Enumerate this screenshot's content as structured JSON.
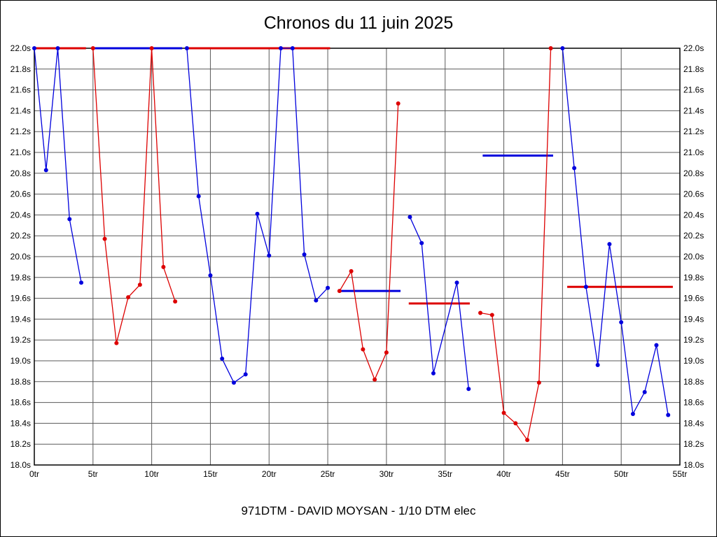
{
  "chart_data": {
    "type": "line",
    "title": "Chronos du 11 juin 2025",
    "caption": "971DTM - DAVID MOYSAN - 1/10 DTM elec",
    "x_unit": "tr",
    "y_unit": "s",
    "xlim": [
      0,
      55
    ],
    "ylim": [
      18.0,
      22.0
    ],
    "grid": true,
    "grid_color": "#5a5a5a",
    "legend": "none",
    "colors": {
      "blue": "#0000dd",
      "red": "#dd0000"
    },
    "xticks": [
      [
        0,
        "0tr"
      ],
      [
        5,
        "5tr"
      ],
      [
        10,
        "10tr"
      ],
      [
        15,
        "15tr"
      ],
      [
        20,
        "20tr"
      ],
      [
        25,
        "25tr"
      ],
      [
        30,
        "30tr"
      ],
      [
        35,
        "35tr"
      ],
      [
        40,
        "40tr"
      ],
      [
        45,
        "45tr"
      ],
      [
        50,
        "50tr"
      ],
      [
        55,
        "55tr"
      ]
    ],
    "yticks": [
      [
        22.0,
        "22.0s"
      ],
      [
        21.8,
        "21.8s"
      ],
      [
        21.6,
        "21.6s"
      ],
      [
        21.4,
        "21.4s"
      ],
      [
        21.2,
        "21.2s"
      ],
      [
        21.0,
        "21.0s"
      ],
      [
        20.8,
        "20.8s"
      ],
      [
        20.6,
        "20.6s"
      ],
      [
        20.4,
        "20.4s"
      ],
      [
        20.2,
        "20.2s"
      ],
      [
        20.0,
        "20.0s"
      ],
      [
        19.8,
        "19.8s"
      ],
      [
        19.6,
        "19.6s"
      ],
      [
        19.4,
        "19.4s"
      ],
      [
        19.2,
        "19.2s"
      ],
      [
        19.0,
        "19.0s"
      ],
      [
        18.8,
        "18.8s"
      ],
      [
        18.6,
        "18.6s"
      ],
      [
        18.4,
        "18.4s"
      ],
      [
        18.2,
        "18.2s"
      ],
      [
        18.0,
        "18.0s"
      ]
    ],
    "series": [
      {
        "name": "run-blue",
        "color_key": "blue",
        "segments": [
          [
            [
              0,
              22.0
            ],
            [
              1,
              20.83
            ],
            [
              2,
              22.0
            ],
            [
              3,
              20.36
            ],
            [
              4,
              19.75
            ]
          ],
          [
            [
              13,
              22.0
            ],
            [
              14,
              20.58
            ],
            [
              15,
              19.82
            ],
            [
              16,
              19.02
            ],
            [
              17,
              18.79
            ],
            [
              18,
              18.87
            ],
            [
              19,
              20.41
            ],
            [
              20,
              20.01
            ],
            [
              21,
              22.0
            ],
            [
              22,
              22.0
            ],
            [
              23,
              20.02
            ],
            [
              24,
              19.58
            ],
            [
              25,
              19.7
            ]
          ],
          [
            [
              32,
              20.38
            ],
            [
              33,
              20.13
            ],
            [
              34,
              18.88
            ],
            [
              36,
              19.75
            ],
            [
              37,
              18.73
            ]
          ],
          [
            [
              45,
              22.0
            ],
            [
              46,
              20.85
            ],
            [
              47,
              19.71
            ],
            [
              48,
              18.96
            ],
            [
              49,
              20.12
            ],
            [
              50,
              19.37
            ],
            [
              51,
              18.49
            ],
            [
              52,
              18.7
            ],
            [
              53,
              19.15
            ],
            [
              54,
              18.48
            ]
          ]
        ]
      },
      {
        "name": "run-red",
        "color_key": "red",
        "segments": [
          [
            [
              5,
              22.0
            ],
            [
              6,
              20.17
            ],
            [
              7,
              19.17
            ],
            [
              8,
              19.61
            ],
            [
              9,
              19.73
            ],
            [
              10,
              22.0
            ],
            [
              11,
              19.9
            ],
            [
              12,
              19.57
            ]
          ],
          [
            [
              26,
              19.67
            ],
            [
              27,
              19.86
            ],
            [
              28,
              19.11
            ],
            [
              29,
              18.82
            ],
            [
              30,
              19.08
            ],
            [
              31,
              21.47
            ]
          ],
          [
            [
              38,
              19.46
            ],
            [
              39,
              19.44
            ],
            [
              40,
              18.5
            ],
            [
              41,
              18.4
            ],
            [
              42,
              18.24
            ],
            [
              43,
              18.79
            ],
            [
              44,
              22.0
            ]
          ]
        ]
      }
    ],
    "reference_lines": [
      {
        "series": "red",
        "y": 22.0,
        "x1": 0.0,
        "x2": 4.4
      },
      {
        "series": "blue",
        "y": 22.0,
        "x1": 4.9,
        "x2": 12.6
      },
      {
        "series": "red",
        "y": 22.0,
        "x1": 12.9,
        "x2": 25.2
      },
      {
        "series": "blue",
        "y": 19.67,
        "x1": 26.0,
        "x2": 31.2
      },
      {
        "series": "red",
        "y": 19.55,
        "x1": 31.9,
        "x2": 37.1
      },
      {
        "series": "blue",
        "y": 20.97,
        "x1": 38.2,
        "x2": 44.2
      },
      {
        "series": "red",
        "y": 19.71,
        "x1": 45.4,
        "x2": 54.4
      }
    ]
  }
}
